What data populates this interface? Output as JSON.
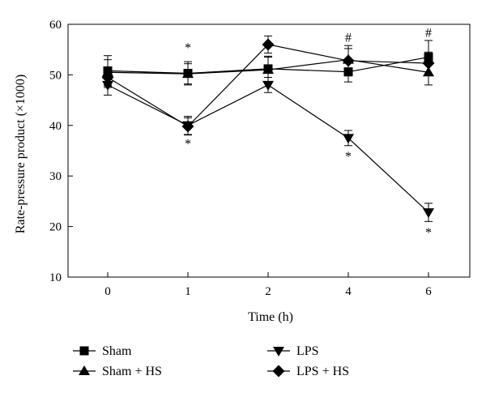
{
  "chart_data": {
    "type": "line",
    "xlabel": "Time (h)",
    "ylabel": "Rate-pressure product (×1000)",
    "categories": [
      "0",
      "1",
      "2",
      "4",
      "6"
    ],
    "yticks": [
      10,
      20,
      30,
      40,
      50,
      60
    ],
    "ylim": [
      10,
      60
    ],
    "grid": false,
    "legend_position": "bottom",
    "series": [
      {
        "name": "Sham",
        "marker": "square",
        "values": [
          50.8,
          50.3,
          51.2,
          50.6,
          53.5
        ],
        "errors": [
          3.0,
          2.3,
          2.5,
          2.0,
          3.3
        ]
      },
      {
        "name": "Sham + HS",
        "marker": "triangle-up",
        "values": [
          50.5,
          50.2,
          51.0,
          53.0,
          50.5
        ],
        "errors": [
          2.5,
          2.0,
          2.5,
          2.2,
          2.5
        ]
      },
      {
        "name": "LPS",
        "marker": "triangle-down",
        "values": [
          48.0,
          40.0,
          48.0,
          37.5,
          22.8
        ],
        "errors": [
          2.0,
          1.8,
          1.5,
          1.5,
          1.8
        ]
      },
      {
        "name": "LPS + HS",
        "marker": "diamond",
        "values": [
          49.5,
          39.8,
          56.0,
          52.8,
          52.3
        ],
        "errors": [
          2.0,
          1.7,
          1.7,
          3.0,
          2.2
        ]
      }
    ],
    "annotations": [
      {
        "text": "*",
        "x_index": 1,
        "y": 55.5
      },
      {
        "text": "*",
        "x_index": 1,
        "y": 36.5
      },
      {
        "text": "#",
        "x_index": 3,
        "y": 57.5
      },
      {
        "text": "*",
        "x_index": 3,
        "y": 34.0
      },
      {
        "text": "#",
        "x_index": 4,
        "y": 58.5
      },
      {
        "text": "*",
        "x_index": 4,
        "y": 19.0
      }
    ]
  }
}
